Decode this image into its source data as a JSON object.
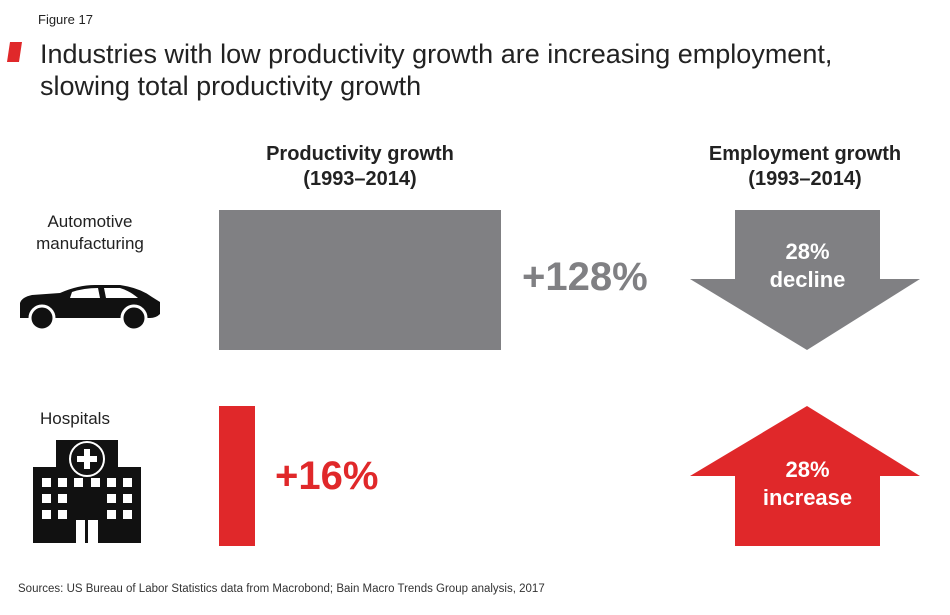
{
  "figure_label": "Figure 17",
  "title_line1": "Industries with low productivity growth are increasing employment,",
  "title_line2": "slowing total productivity growth",
  "source": "Sources: US Bureau of Labor Statistics data from Macrobond; Bain Macro Trends Group analysis, 2017",
  "colors": {
    "gray": "#808083",
    "red": "#e0282a",
    "dark": "#111111"
  },
  "chart_data": {
    "type": "bar",
    "columns": [
      {
        "heading_line1": "Productivity growth",
        "heading_line2": "(1993–2014)"
      },
      {
        "heading_line1": "Employment growth",
        "heading_line2": "(1993–2014)"
      }
    ],
    "categories": [
      "Automotive manufacturing",
      "Hospitals"
    ],
    "rows": [
      {
        "label_line1": "Automotive",
        "label_line2": "manufacturing",
        "icon": "car-icon",
        "productivity_growth_pct": 128,
        "productivity_label": "+128%",
        "employment_change_pct": -28,
        "employment_direction": "down",
        "employment_label_line1": "28%",
        "employment_label_line2": "decline"
      },
      {
        "label_line1": "Hospitals",
        "label_line2": "",
        "icon": "hospital-icon",
        "productivity_growth_pct": 16,
        "productivity_label": "+16%",
        "employment_change_pct": 28,
        "employment_direction": "up",
        "employment_label_line1": "28%",
        "employment_label_line2": "increase"
      }
    ]
  }
}
